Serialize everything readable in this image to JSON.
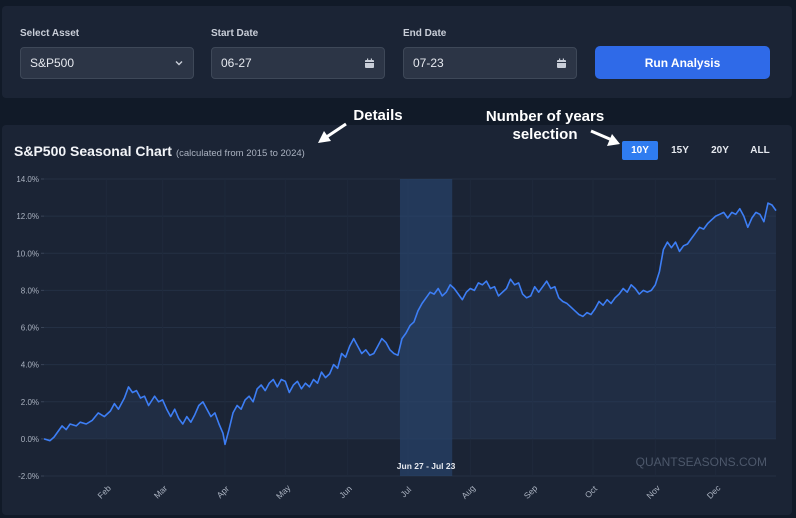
{
  "controls": {
    "asset_label": "Select Asset",
    "asset_value": "S&P500",
    "start_label": "Start Date",
    "start_value": "06-27",
    "end_label": "End Date",
    "end_value": "07-23",
    "run_label": "Run Analysis"
  },
  "chart_header": {
    "title": "S&P500 Seasonal Chart",
    "subtitle": "(calculated from 2015 to 2024)"
  },
  "year_buttons": [
    {
      "label": "10Y",
      "active": true
    },
    {
      "label": "15Y",
      "active": false
    },
    {
      "label": "20Y",
      "active": false
    },
    {
      "label": "ALL",
      "active": false
    }
  ],
  "annotations": {
    "details": "Details",
    "years_line1": "Number of years",
    "years_line2": "selection"
  },
  "watermark": "QUANTSEASONS.COM",
  "highlight_label": "Jun 27 - Jul 23",
  "colors": {
    "line": "#3d7ef5",
    "highlight": "#2a4a78",
    "accent": "#2f6ae8"
  },
  "chart_data": {
    "type": "area",
    "x_start_day": 1,
    "x_end_day": 365,
    "ylim": [
      -2,
      14
    ],
    "yticks": [
      -2,
      0,
      2,
      4,
      6,
      8,
      10,
      12,
      14
    ],
    "ytick_labels": [
      "-2.0%",
      "0.0%",
      "2.0%",
      "4.0%",
      "6.0%",
      "8.0%",
      "10.0%",
      "12.0%",
      "14.0%"
    ],
    "xticks": [
      {
        "label": "Feb",
        "day": 32
      },
      {
        "label": "Mar",
        "day": 60
      },
      {
        "label": "Apr",
        "day": 91
      },
      {
        "label": "May",
        "day": 121
      },
      {
        "label": "Jun",
        "day": 152
      },
      {
        "label": "Jul",
        "day": 182
      },
      {
        "label": "Aug",
        "day": 213
      },
      {
        "label": "Sep",
        "day": 244
      },
      {
        "label": "Oct",
        "day": 274
      },
      {
        "label": "Nov",
        "day": 305
      },
      {
        "label": "Dec",
        "day": 335
      }
    ],
    "highlight": {
      "start_day": 178,
      "end_day": 204,
      "label": "Jun 27 - Jul 23"
    },
    "points": [
      [
        1,
        0.0
      ],
      [
        4,
        -0.1
      ],
      [
        6,
        0.1
      ],
      [
        8,
        0.4
      ],
      [
        10,
        0.7
      ],
      [
        12,
        0.5
      ],
      [
        14,
        0.8
      ],
      [
        17,
        0.7
      ],
      [
        19,
        0.9
      ],
      [
        22,
        0.8
      ],
      [
        25,
        1.0
      ],
      [
        28,
        1.4
      ],
      [
        31,
        1.2
      ],
      [
        34,
        1.5
      ],
      [
        36,
        1.9
      ],
      [
        38,
        1.6
      ],
      [
        41,
        2.2
      ],
      [
        43,
        2.8
      ],
      [
        45,
        2.5
      ],
      [
        47,
        2.6
      ],
      [
        49,
        2.2
      ],
      [
        51,
        2.3
      ],
      [
        53,
        1.8
      ],
      [
        56,
        2.3
      ],
      [
        58,
        2.0
      ],
      [
        60,
        2.1
      ],
      [
        62,
        1.6
      ],
      [
        64,
        1.2
      ],
      [
        66,
        1.6
      ],
      [
        68,
        1.1
      ],
      [
        70,
        0.8
      ],
      [
        72,
        1.2
      ],
      [
        74,
        0.9
      ],
      [
        76,
        1.3
      ],
      [
        78,
        1.8
      ],
      [
        80,
        2.0
      ],
      [
        82,
        1.6
      ],
      [
        84,
        1.2
      ],
      [
        86,
        1.4
      ],
      [
        88,
        0.8
      ],
      [
        90,
        0.3
      ],
      [
        91,
        -0.3
      ],
      [
        93,
        0.5
      ],
      [
        95,
        1.4
      ],
      [
        97,
        1.8
      ],
      [
        99,
        1.6
      ],
      [
        101,
        2.1
      ],
      [
        103,
        2.3
      ],
      [
        105,
        2.0
      ],
      [
        107,
        2.7
      ],
      [
        109,
        2.9
      ],
      [
        111,
        2.6
      ],
      [
        113,
        3.0
      ],
      [
        115,
        3.2
      ],
      [
        117,
        2.8
      ],
      [
        119,
        3.2
      ],
      [
        121,
        3.1
      ],
      [
        123,
        2.5
      ],
      [
        125,
        2.9
      ],
      [
        127,
        3.1
      ],
      [
        129,
        2.7
      ],
      [
        131,
        3.0
      ],
      [
        133,
        2.8
      ],
      [
        135,
        3.2
      ],
      [
        137,
        3.0
      ],
      [
        139,
        3.6
      ],
      [
        141,
        3.3
      ],
      [
        143,
        3.5
      ],
      [
        145,
        4.0
      ],
      [
        147,
        3.8
      ],
      [
        149,
        4.6
      ],
      [
        151,
        4.4
      ],
      [
        153,
        5.0
      ],
      [
        155,
        5.4
      ],
      [
        157,
        5.0
      ],
      [
        159,
        4.6
      ],
      [
        161,
        4.8
      ],
      [
        163,
        4.5
      ],
      [
        165,
        4.6
      ],
      [
        167,
        5.0
      ],
      [
        169,
        5.4
      ],
      [
        171,
        5.2
      ],
      [
        173,
        4.8
      ],
      [
        175,
        4.6
      ],
      [
        177,
        4.5
      ],
      [
        179,
        5.4
      ],
      [
        181,
        5.7
      ],
      [
        183,
        6.1
      ],
      [
        185,
        6.3
      ],
      [
        187,
        6.9
      ],
      [
        189,
        7.3
      ],
      [
        191,
        7.6
      ],
      [
        193,
        7.9
      ],
      [
        195,
        7.8
      ],
      [
        197,
        8.1
      ],
      [
        199,
        7.7
      ],
      [
        201,
        7.9
      ],
      [
        203,
        8.3
      ],
      [
        205,
        8.1
      ],
      [
        207,
        7.8
      ],
      [
        209,
        7.5
      ],
      [
        211,
        7.9
      ],
      [
        213,
        8.1
      ],
      [
        215,
        8.0
      ],
      [
        217,
        8.4
      ],
      [
        219,
        8.3
      ],
      [
        221,
        8.5
      ],
      [
        223,
        8.1
      ],
      [
        225,
        8.2
      ],
      [
        227,
        7.7
      ],
      [
        229,
        7.9
      ],
      [
        231,
        8.1
      ],
      [
        233,
        8.6
      ],
      [
        235,
        8.3
      ],
      [
        237,
        8.4
      ],
      [
        239,
        7.8
      ],
      [
        241,
        7.6
      ],
      [
        243,
        7.7
      ],
      [
        245,
        8.2
      ],
      [
        247,
        7.9
      ],
      [
        249,
        8.2
      ],
      [
        251,
        8.5
      ],
      [
        253,
        8.1
      ],
      [
        255,
        8.2
      ],
      [
        257,
        7.6
      ],
      [
        259,
        7.4
      ],
      [
        261,
        7.3
      ],
      [
        263,
        7.1
      ],
      [
        265,
        6.9
      ],
      [
        267,
        6.7
      ],
      [
        269,
        6.6
      ],
      [
        271,
        6.8
      ],
      [
        273,
        6.7
      ],
      [
        275,
        7.0
      ],
      [
        277,
        7.4
      ],
      [
        279,
        7.2
      ],
      [
        281,
        7.5
      ],
      [
        283,
        7.3
      ],
      [
        285,
        7.6
      ],
      [
        287,
        7.8
      ],
      [
        289,
        8.1
      ],
      [
        291,
        7.9
      ],
      [
        293,
        8.3
      ],
      [
        295,
        8.1
      ],
      [
        297,
        7.8
      ],
      [
        299,
        8.0
      ],
      [
        301,
        7.9
      ],
      [
        303,
        8.0
      ],
      [
        305,
        8.3
      ],
      [
        307,
        9.0
      ],
      [
        309,
        10.2
      ],
      [
        311,
        10.6
      ],
      [
        313,
        10.3
      ],
      [
        315,
        10.6
      ],
      [
        317,
        10.1
      ],
      [
        319,
        10.4
      ],
      [
        321,
        10.5
      ],
      [
        323,
        10.8
      ],
      [
        325,
        11.1
      ],
      [
        327,
        11.4
      ],
      [
        329,
        11.3
      ],
      [
        331,
        11.6
      ],
      [
        333,
        11.8
      ],
      [
        335,
        12.0
      ],
      [
        337,
        12.1
      ],
      [
        339,
        12.2
      ],
      [
        341,
        11.9
      ],
      [
        343,
        12.2
      ],
      [
        345,
        12.1
      ],
      [
        347,
        12.4
      ],
      [
        349,
        12.0
      ],
      [
        351,
        11.4
      ],
      [
        353,
        11.9
      ],
      [
        355,
        12.2
      ],
      [
        357,
        12.1
      ],
      [
        359,
        11.7
      ],
      [
        361,
        12.7
      ],
      [
        363,
        12.6
      ],
      [
        365,
        12.3
      ]
    ]
  }
}
